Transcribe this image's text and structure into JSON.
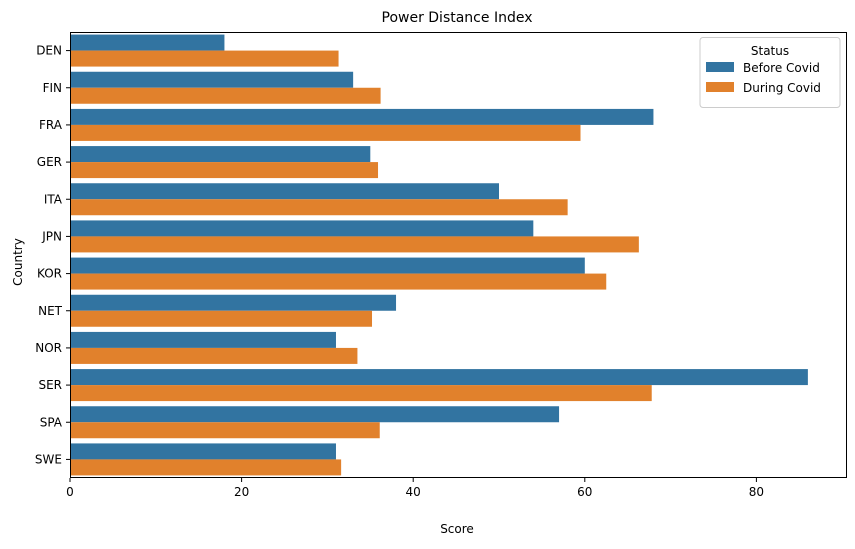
{
  "chart_data": {
    "type": "bar",
    "orientation": "horizontal",
    "title": "Power Distance Index",
    "xlabel": "Score",
    "ylabel": "Country",
    "xlim": [
      0,
      90
    ],
    "xticks": [
      0,
      20,
      40,
      60,
      80
    ],
    "categories": [
      "DEN",
      "FIN",
      "FRA",
      "GER",
      "ITA",
      "JPN",
      "KOR",
      "NET",
      "NOR",
      "SER",
      "SPA",
      "SWE"
    ],
    "series": [
      {
        "name": "Before Covid",
        "color": "#3274a1",
        "values": [
          18,
          33,
          68,
          35,
          50,
          54,
          60,
          38,
          31,
          86,
          57,
          31
        ]
      },
      {
        "name": "During Covid",
        "color": "#e1812c",
        "values": [
          31.3,
          36.2,
          59.5,
          35.9,
          58,
          66.3,
          62.5,
          35.2,
          33.5,
          67.8,
          36.1,
          31.6
        ]
      }
    ],
    "legend": {
      "title": "Status",
      "position": "top-right"
    },
    "grid": false
  }
}
